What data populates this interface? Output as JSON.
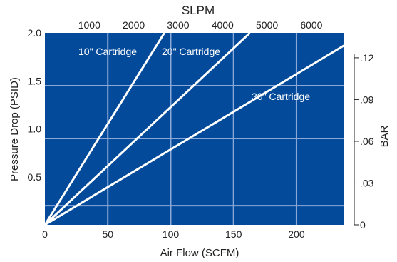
{
  "chart_data": {
    "type": "line",
    "title": "",
    "xlabel": "Air Flow (SCFM)",
    "ylabel": "Pressure Drop (PSID)",
    "top_axis_label": "SLPM",
    "right_axis_label": "BAR",
    "xlim": [
      0,
      238
    ],
    "ylim": [
      0,
      2.0
    ],
    "x_ticks": [
      "0",
      "50",
      "100",
      "150",
      "200"
    ],
    "x_tick_values": [
      0,
      50,
      100,
      150,
      200
    ],
    "y_ticks": [
      "0.5",
      "1.0",
      "1.5",
      "2.0"
    ],
    "y_tick_values": [
      0.5,
      1.0,
      1.5,
      2.0
    ],
    "top_ticks": [
      "1000",
      "2000",
      "3000",
      "4000",
      "5000",
      "6000"
    ],
    "top_tick_values": [
      1000,
      2000,
      3000,
      4000,
      5000,
      6000
    ],
    "top_scale_lpm_per_scfm": 28.3168,
    "right_ticks": [
      "0",
      ".03",
      ".06",
      ".09",
      ".12"
    ],
    "right_tick_values": [
      0,
      0.03,
      0.06,
      0.09,
      0.12
    ],
    "right_scale_bar_per_psi": 0.0689476,
    "grid_x": [
      50,
      100,
      150,
      200
    ],
    "grid_y": [
      0.2,
      0.9,
      1.45
    ],
    "series": [
      {
        "name": "10\" Cartridge",
        "x": [
          0,
          95
        ],
        "y": [
          0,
          2.0
        ]
      },
      {
        "name": "20\" Cartridge",
        "x": [
          0,
          163
        ],
        "y": [
          0,
          2.0
        ]
      },
      {
        "name": "30\" Cartridge",
        "x": [
          0,
          238
        ],
        "y": [
          0,
          1.87
        ]
      }
    ],
    "colors": {
      "plot_background": "#034a9a",
      "line": "#ffffff",
      "grid": "#8aa9d8"
    }
  }
}
